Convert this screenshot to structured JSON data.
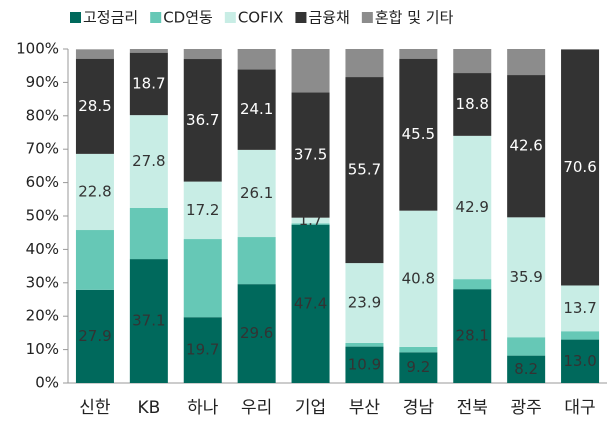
{
  "chart_data": {
    "type": "stacked_bar",
    "categories": [
      "신한",
      "KB",
      "하나",
      "우리",
      "기업",
      "부산",
      "경남",
      "전북",
      "광주",
      "대구"
    ],
    "series": [
      {
        "name": "고정금리",
        "color": "#00695c",
        "label_color": "#333333",
        "values": [
          27.9,
          37.1,
          19.7,
          29.6,
          47.4,
          10.9,
          9.2,
          28.1,
          8.2,
          13.0
        ],
        "value_labels": [
          "27.9",
          "37.1",
          "19.7",
          "29.6",
          "47.4",
          "10.9",
          "9.2",
          "28.1",
          "8.2",
          "13.0"
        ]
      },
      {
        "name": "CD연동",
        "color": "#66c8b6",
        "label_color": "#333333",
        "values": [
          17.9,
          15.3,
          23.4,
          14.1,
          0.4,
          1.1,
          1.6,
          3.0,
          5.5,
          2.5
        ],
        "value_labels": [
          null,
          null,
          null,
          null,
          null,
          null,
          null,
          null,
          null,
          null
        ]
      },
      {
        "name": "COFIX",
        "color": "#c8ede5",
        "label_color": "#333333",
        "values": [
          22.8,
          27.8,
          17.2,
          26.1,
          1.7,
          23.9,
          40.8,
          42.9,
          35.9,
          13.7
        ],
        "value_labels": [
          "22.8",
          "27.8",
          "17.2",
          "26.1",
          "1.7",
          "23.9",
          "40.8",
          "42.9",
          "35.9",
          "13.7"
        ]
      },
      {
        "name": "금융채",
        "color": "#333333",
        "label_color": "#ffffff",
        "values": [
          28.5,
          18.7,
          36.7,
          24.1,
          37.5,
          55.7,
          45.5,
          18.8,
          42.6,
          70.6
        ],
        "value_labels": [
          "28.5",
          "18.7",
          "36.7",
          "24.1",
          "37.5",
          "55.7",
          "45.5",
          "18.8",
          "42.6",
          "70.6"
        ]
      },
      {
        "name": "혼합 및 기타",
        "color": "#8c8c8c",
        "label_color": "#ffffff",
        "values": [
          2.8,
          1.1,
          3.0,
          6.1,
          13.0,
          8.4,
          2.9,
          7.2,
          7.8,
          0.2
        ],
        "value_labels": [
          null,
          null,
          null,
          null,
          null,
          null,
          null,
          null,
          null,
          null
        ]
      }
    ],
    "ylim": [
      0,
      100
    ],
    "yticks": [
      {
        "value": 0,
        "label": "0%"
      },
      {
        "value": 10,
        "label": "10%"
      },
      {
        "value": 20,
        "label": "20%"
      },
      {
        "value": 30,
        "label": "30%"
      },
      {
        "value": 40,
        "label": "40%"
      },
      {
        "value": 50,
        "label": "50%"
      },
      {
        "value": 60,
        "label": "60%"
      },
      {
        "value": 70,
        "label": "70%"
      },
      {
        "value": 80,
        "label": "80%"
      },
      {
        "value": 90,
        "label": "90%"
      },
      {
        "value": 100,
        "label": "100%"
      }
    ],
    "grid": false,
    "legend": "top"
  }
}
